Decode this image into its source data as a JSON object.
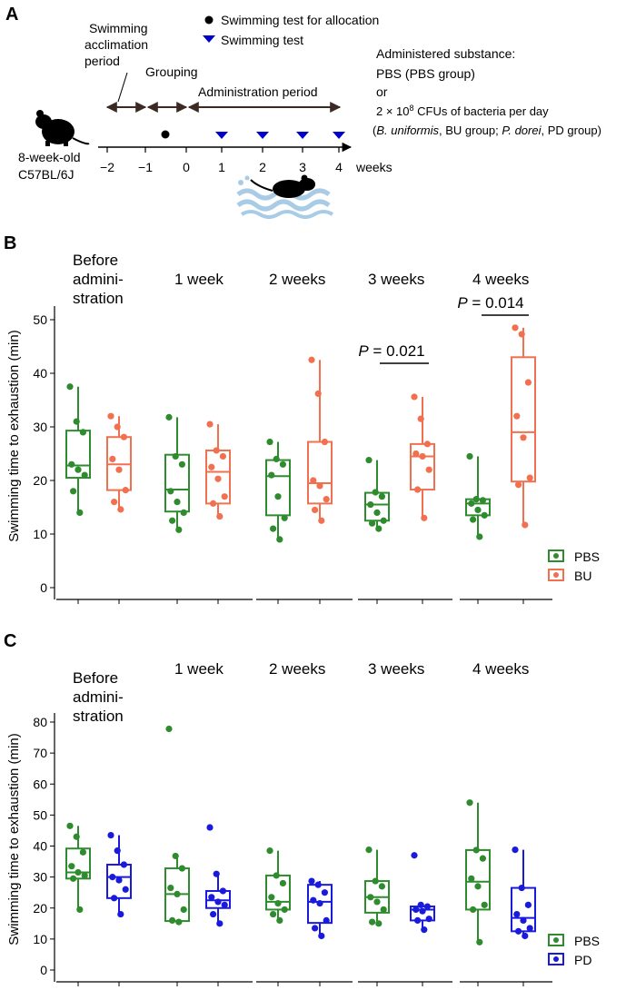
{
  "panel_a": {
    "letter": "A",
    "acclimation_label": [
      "Swimming",
      "acclimation",
      "period"
    ],
    "grouping_label": "Grouping",
    "administration_label": "Administration period",
    "legend_allocation": "Swimming test for allocation",
    "legend_test": "Swimming test",
    "substance_lines": [
      "Administered substance:",
      "PBS (PBS group)",
      "or"
    ],
    "cfu_prefix": "2 × 10",
    "cfu_exp": "8",
    "cfu_suffix": " CFUs of bacteria per day",
    "bu_species": "B. uniformis",
    "bu_suffix": ", BU group; ",
    "pd_species": "P. dorei",
    "pd_suffix": ", PD group)",
    "mouse_label": [
      "8-week-old",
      "C57BL/6J"
    ],
    "week_ticks": [
      "−2",
      "−1",
      "0",
      "1",
      "2",
      "3",
      "4"
    ],
    "weeks_label": "weeks"
  },
  "panel_b": {
    "letter": "B",
    "y_label": "Swimming time to exhaustion (min)",
    "timepoints": [
      [
        "Before",
        "admini-",
        "stration"
      ],
      [
        "1 week"
      ],
      [
        "2 weeks"
      ],
      [
        "3 weeks"
      ],
      [
        "4 weeks"
      ]
    ],
    "annotations": [
      {
        "p_label": "P",
        "p_value": " = 0.021"
      },
      {
        "p_label": "P",
        "p_value": " = 0.014"
      }
    ],
    "legend": [
      "PBS",
      "BU"
    ]
  },
  "panel_c": {
    "letter": "C",
    "y_label": "Swimming time to exhaustion (min)",
    "timepoints": [
      [
        "Before",
        "admini-",
        "stration"
      ],
      [
        "1 week"
      ],
      [
        "2 weeks"
      ],
      [
        "3 weeks"
      ],
      [
        "4 weeks"
      ]
    ],
    "legend": [
      "PBS",
      "PD"
    ]
  },
  "colors": {
    "pbs": "#2e8b2e",
    "bu": "#f07050",
    "pd": "#1a1adc",
    "marker": "#0000cc"
  },
  "chart_data": [
    {
      "type": "box",
      "title": "B",
      "ylabel": "Swimming time to exhaustion (min)",
      "ylim": [
        0,
        50
      ],
      "yticks": [
        0,
        10,
        20,
        30,
        40,
        50
      ],
      "categories": [
        "Before administration",
        "1 week",
        "2 weeks",
        "3 weeks",
        "4 weeks"
      ],
      "series": [
        {
          "name": "PBS",
          "boxes": [
            {
              "min": 14,
              "q1": 20.5,
              "median": 22.8,
              "q3": 29.3,
              "max": 37.5,
              "points": [
                37.5,
                31,
                29,
                23,
                22,
                21,
                18,
                14
              ]
            },
            {
              "min": 10.8,
              "q1": 14.2,
              "median": 18.3,
              "q3": 24.8,
              "max": 31.8,
              "points": [
                31.8,
                24.5,
                23,
                18,
                16,
                14,
                12.5,
                10.8
              ]
            },
            {
              "min": 9,
              "q1": 13.5,
              "median": 20.8,
              "q3": 23.8,
              "max": 27.2,
              "points": [
                27.2,
                24,
                23,
                21,
                17,
                13,
                11,
                9
              ]
            },
            {
              "min": 11,
              "q1": 12.5,
              "median": 15.5,
              "q3": 17.7,
              "max": 23.8,
              "points": [
                23.8,
                17.8,
                17,
                15.5,
                14,
                12.5,
                12,
                11
              ]
            },
            {
              "min": 9.5,
              "q1": 13.5,
              "median": 15.7,
              "q3": 16.5,
              "max": 24.5,
              "points": [
                24.5,
                16.5,
                16.3,
                15.7,
                14.5,
                13.5,
                12.7,
                9.5
              ]
            }
          ]
        },
        {
          "name": "BU",
          "boxes": [
            {
              "min": 14.6,
              "q1": 18.2,
              "median": 23,
              "q3": 28.1,
              "max": 32,
              "points": [
                32,
                30,
                28.1,
                24,
                22,
                18.2,
                16,
                14.6
              ]
            },
            {
              "min": 13.3,
              "q1": 15.7,
              "median": 21.6,
              "q3": 25.6,
              "max": 30.5,
              "points": [
                30.5,
                25.6,
                24.5,
                22.5,
                20.3,
                17,
                15.7,
                13.3
              ]
            },
            {
              "min": 12.5,
              "q1": 15.7,
              "median": 19.5,
              "q3": 27.2,
              "max": 42.5,
              "points": [
                42.5,
                36.2,
                27.2,
                20,
                19,
                16.5,
                14.5,
                12.5
              ]
            },
            {
              "min": 13,
              "q1": 18.3,
              "median": 24.5,
              "q3": 26.8,
              "max": 35.6,
              "points": [
                35.6,
                31.5,
                26.8,
                25,
                24.5,
                22,
                18.3,
                13
              ]
            },
            {
              "min": 11.7,
              "q1": 19.8,
              "median": 29,
              "q3": 43,
              "max": 48.5,
              "points": [
                48.5,
                47.3,
                38.3,
                32,
                28,
                20.5,
                19.2,
                11.7
              ]
            }
          ]
        }
      ],
      "legend": [
        "PBS",
        "BU"
      ],
      "annotations": [
        {
          "between": "3 weeks",
          "text": "P = 0.021",
          "y": 41
        },
        {
          "between": "4 weeks",
          "text": "P = 0.014",
          "y": 50
        }
      ]
    },
    {
      "type": "box",
      "title": "C",
      "ylabel": "Swimming time to exhaustion (min)",
      "ylim": [
        0,
        80
      ],
      "yticks": [
        0,
        10,
        20,
        30,
        40,
        50,
        60,
        70,
        80
      ],
      "categories": [
        "Before administration",
        "1 week",
        "2 weeks",
        "3 weeks",
        "4 weeks"
      ],
      "series": [
        {
          "name": "PBS",
          "boxes": [
            {
              "min": 19.5,
              "q1": 29.5,
              "median": 31.5,
              "q3": 39.2,
              "max": 46.5,
              "points": [
                46.5,
                43,
                38,
                33.5,
                31.5,
                30.5,
                29.5,
                19.5
              ]
            },
            {
              "min": 15.5,
              "q1": 15.8,
              "median": 24.5,
              "q3": 32.8,
              "max": 36.8,
              "points": [
                77.8,
                36.8,
                32.8,
                26.5,
                24.5,
                19.5,
                16,
                15.5
              ]
            },
            {
              "min": 16,
              "q1": 19.5,
              "median": 22,
              "q3": 30.5,
              "max": 38.5,
              "points": [
                38.5,
                30.5,
                28,
                23.5,
                21.5,
                19.5,
                18,
                16
              ]
            },
            {
              "min": 15,
              "q1": 18.5,
              "median": 23.5,
              "q3": 28.7,
              "max": 38.8,
              "points": [
                38.8,
                28.7,
                27,
                23.5,
                22,
                19.5,
                15.5,
                15
              ]
            },
            {
              "min": 9,
              "q1": 19.5,
              "median": 28.5,
              "q3": 38.7,
              "max": 54,
              "points": [
                54,
                38.7,
                36,
                29.5,
                27,
                21,
                19.5,
                9
              ]
            }
          ]
        },
        {
          "name": "PD",
          "boxes": [
            {
              "min": 18,
              "q1": 23.2,
              "median": 30,
              "q3": 34,
              "max": 43.5,
              "points": [
                43.5,
                38.5,
                34,
                30,
                29,
                26,
                23.2,
                18
              ]
            },
            {
              "min": 15,
              "q1": 20,
              "median": 22.5,
              "q3": 25.5,
              "max": 31,
              "points": [
                46,
                31,
                25.5,
                23.5,
                22,
                21,
                18,
                15
              ]
            },
            {
              "min": 11,
              "q1": 15.2,
              "median": 22,
              "q3": 27.5,
              "max": 28.7,
              "points": [
                28.7,
                27.5,
                25,
                22.5,
                21.5,
                16,
                13.5,
                11
              ]
            },
            {
              "min": 13,
              "q1": 16,
              "median": 19.5,
              "q3": 20.5,
              "max": 21,
              "points": [
                37,
                21,
                20.5,
                19.5,
                19,
                16.5,
                16,
                13
              ]
            },
            {
              "min": 11,
              "q1": 12.5,
              "median": 16.8,
              "q3": 26.5,
              "max": 38.8,
              "points": [
                38.8,
                26.5,
                21,
                18,
                16,
                13.5,
                12.5,
                11
              ]
            }
          ]
        }
      ],
      "legend": [
        "PBS",
        "PD"
      ]
    }
  ]
}
